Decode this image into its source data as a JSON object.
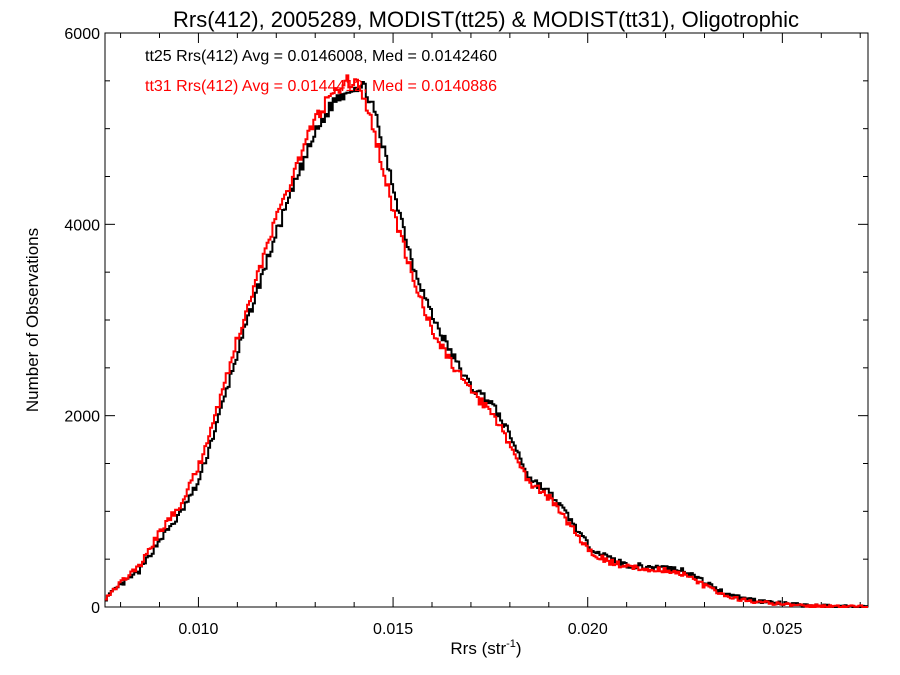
{
  "chart_data": {
    "type": "line",
    "title": "Rrs(412), 2005289, MODIST(tt25) & MODIST(tt31), Oligotrophic",
    "xlabel_main": "Rrs (str",
    "xlabel_sup": "-1",
    "xlabel_close": ")",
    "ylabel": "Number of Observations",
    "xlim": [
      0.0076,
      0.0272
    ],
    "ylim": [
      0,
      6000
    ],
    "x_ticks": [
      0.01,
      0.015,
      0.02,
      0.025
    ],
    "x_tick_labels": [
      "0.010",
      "0.015",
      "0.020",
      "0.025"
    ],
    "y_ticks": [
      0,
      2000,
      4000,
      6000
    ],
    "y_tick_labels": [
      "0",
      "2000",
      "4000",
      "6000"
    ],
    "series": [
      {
        "name": "tt25",
        "color": "#000000",
        "annotation": "tt25 Rrs(412) Avg = 0.0146008, Med = 0.0142460",
        "points": [
          [
            0.0076,
            80
          ],
          [
            0.008,
            230
          ],
          [
            0.0085,
            380
          ],
          [
            0.009,
            700
          ],
          [
            0.0095,
            950
          ],
          [
            0.01,
            1300
          ],
          [
            0.0105,
            1950
          ],
          [
            0.011,
            2650
          ],
          [
            0.0115,
            3300
          ],
          [
            0.012,
            3900
          ],
          [
            0.0125,
            4450
          ],
          [
            0.013,
            4950
          ],
          [
            0.0135,
            5300
          ],
          [
            0.014,
            5450
          ],
          [
            0.0143,
            5420
          ],
          [
            0.0145,
            5200
          ],
          [
            0.015,
            4400
          ],
          [
            0.0155,
            3600
          ],
          [
            0.016,
            3050
          ],
          [
            0.0165,
            2650
          ],
          [
            0.017,
            2300
          ],
          [
            0.0175,
            2150
          ],
          [
            0.018,
            1800
          ],
          [
            0.0185,
            1350
          ],
          [
            0.019,
            1200
          ],
          [
            0.0195,
            950
          ],
          [
            0.02,
            650
          ],
          [
            0.0205,
            520
          ],
          [
            0.021,
            440
          ],
          [
            0.0215,
            420
          ],
          [
            0.022,
            410
          ],
          [
            0.0225,
            380
          ],
          [
            0.023,
            260
          ],
          [
            0.0235,
            150
          ],
          [
            0.024,
            90
          ],
          [
            0.0245,
            60
          ],
          [
            0.025,
            35
          ],
          [
            0.0255,
            20
          ],
          [
            0.026,
            10
          ],
          [
            0.0265,
            6
          ],
          [
            0.0272,
            3
          ]
        ]
      },
      {
        "name": "tt31",
        "color": "#ff0000",
        "annotation": "tt31 Rrs(412) Avg = 0.0144412, Med = 0.0140886",
        "points": [
          [
            0.0076,
            90
          ],
          [
            0.008,
            260
          ],
          [
            0.0085,
            430
          ],
          [
            0.009,
            780
          ],
          [
            0.0095,
            1050
          ],
          [
            0.01,
            1450
          ],
          [
            0.0105,
            2100
          ],
          [
            0.011,
            2800
          ],
          [
            0.0115,
            3450
          ],
          [
            0.012,
            4050
          ],
          [
            0.0125,
            4600
          ],
          [
            0.013,
            5100
          ],
          [
            0.0135,
            5400
          ],
          [
            0.0138,
            5500
          ],
          [
            0.0141,
            5450
          ],
          [
            0.0145,
            5000
          ],
          [
            0.015,
            4150
          ],
          [
            0.0155,
            3450
          ],
          [
            0.016,
            2900
          ],
          [
            0.0165,
            2550
          ],
          [
            0.017,
            2250
          ],
          [
            0.0175,
            2050
          ],
          [
            0.018,
            1700
          ],
          [
            0.0185,
            1300
          ],
          [
            0.019,
            1150
          ],
          [
            0.0195,
            880
          ],
          [
            0.02,
            600
          ],
          [
            0.0205,
            480
          ],
          [
            0.021,
            420
          ],
          [
            0.0215,
            400
          ],
          [
            0.022,
            390
          ],
          [
            0.0225,
            340
          ],
          [
            0.023,
            220
          ],
          [
            0.0235,
            120
          ],
          [
            0.024,
            70
          ],
          [
            0.0245,
            45
          ],
          [
            0.025,
            28
          ],
          [
            0.0255,
            15
          ],
          [
            0.026,
            8
          ],
          [
            0.0265,
            4
          ],
          [
            0.0272,
            2
          ]
        ]
      }
    ]
  }
}
